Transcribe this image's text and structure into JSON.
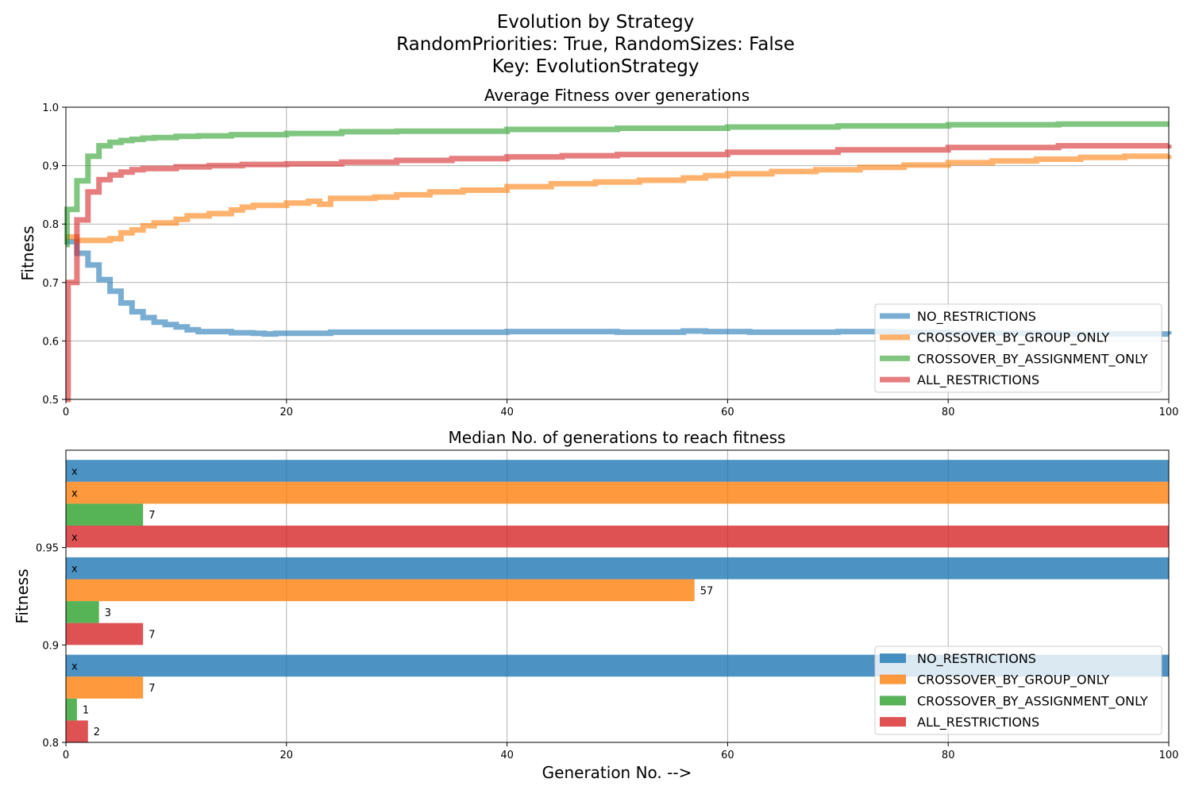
{
  "figure": {
    "suptitle_lines": [
      "Evolution by Strategy",
      "RandomPriorities: True, RandomSizes: False",
      "Key: EvolutionStrategy"
    ],
    "xlabel": "Generation No. -->"
  },
  "colors": {
    "NO_RESTRICTIONS": "#1f77b4",
    "CROSSOVER_BY_GROUP_ONLY": "#ff7f0e",
    "CROSSOVER_BY_ASSIGNMENT_ONLY": "#2ca02c",
    "ALL_RESTRICTIONS": "#d62728"
  },
  "chart_data": [
    {
      "type": "line",
      "title": "Average Fitness over generations",
      "xlabel": "",
      "ylabel": "Fitness",
      "xlim": [
        0,
        100
      ],
      "ylim": [
        0.5,
        1.0
      ],
      "xticks": [
        "0",
        "20",
        "40",
        "60",
        "80",
        "100"
      ],
      "yticks": [
        "0.5",
        "0.6",
        "0.7",
        "0.8",
        "0.9",
        "1.0"
      ],
      "grid": true,
      "legend": "lower-right",
      "step": true,
      "series": [
        {
          "name": "NO_RESTRICTIONS",
          "points": [
            [
              0,
              0.77
            ],
            [
              1,
              0.75
            ],
            [
              2,
              0.73
            ],
            [
              3,
              0.705
            ],
            [
              4,
              0.685
            ],
            [
              5,
              0.665
            ],
            [
              6,
              0.65
            ],
            [
              7,
              0.64
            ],
            [
              8,
              0.632
            ],
            [
              9,
              0.628
            ],
            [
              10,
              0.624
            ],
            [
              11,
              0.619
            ],
            [
              12,
              0.616
            ],
            [
              15,
              0.614
            ],
            [
              17,
              0.613
            ],
            [
              18,
              0.612
            ],
            [
              19,
              0.613
            ],
            [
              24,
              0.615
            ],
            [
              30,
              0.615
            ],
            [
              40,
              0.616
            ],
            [
              50,
              0.615
            ],
            [
              56,
              0.617
            ],
            [
              58,
              0.616
            ],
            [
              62,
              0.615
            ],
            [
              70,
              0.616
            ],
            [
              75,
              0.615
            ],
            [
              80,
              0.613
            ],
            [
              90,
              0.612
            ],
            [
              100,
              0.611
            ]
          ]
        },
        {
          "name": "CROSSOVER_BY_GROUP_ONLY",
          "points": [
            [
              0,
              0.778
            ],
            [
              1,
              0.772
            ],
            [
              4,
              0.775
            ],
            [
              5,
              0.785
            ],
            [
              6,
              0.79
            ],
            [
              7,
              0.797
            ],
            [
              8,
              0.802
            ],
            [
              10,
              0.808
            ],
            [
              11,
              0.814
            ],
            [
              13,
              0.818
            ],
            [
              15,
              0.824
            ],
            [
              16,
              0.829
            ],
            [
              17,
              0.832
            ],
            [
              20,
              0.836
            ],
            [
              22,
              0.839
            ],
            [
              23,
              0.834
            ],
            [
              24,
              0.844
            ],
            [
              28,
              0.846
            ],
            [
              30,
              0.85
            ],
            [
              33,
              0.855
            ],
            [
              36,
              0.858
            ],
            [
              40,
              0.864
            ],
            [
              44,
              0.869
            ],
            [
              48,
              0.872
            ],
            [
              52,
              0.875
            ],
            [
              56,
              0.879
            ],
            [
              58,
              0.883
            ],
            [
              60,
              0.886
            ],
            [
              64,
              0.89
            ],
            [
              68,
              0.893
            ],
            [
              72,
              0.897
            ],
            [
              76,
              0.901
            ],
            [
              80,
              0.905
            ],
            [
              84,
              0.908
            ],
            [
              88,
              0.911
            ],
            [
              92,
              0.914
            ],
            [
              96,
              0.916
            ],
            [
              100,
              0.918
            ]
          ]
        },
        {
          "name": "CROSSOVER_BY_ASSIGNMENT_ONLY",
          "points": [
            [
              0,
              0.765
            ],
            [
              0.1,
              0.825
            ],
            [
              1,
              0.874
            ],
            [
              2,
              0.916
            ],
            [
              3,
              0.934
            ],
            [
              4,
              0.94
            ],
            [
              5,
              0.943
            ],
            [
              6,
              0.945
            ],
            [
              7,
              0.947
            ],
            [
              8,
              0.948
            ],
            [
              10,
              0.95
            ],
            [
              12,
              0.951
            ],
            [
              15,
              0.953
            ],
            [
              20,
              0.955
            ],
            [
              25,
              0.958
            ],
            [
              30,
              0.959
            ],
            [
              40,
              0.962
            ],
            [
              50,
              0.964
            ],
            [
              60,
              0.966
            ],
            [
              70,
              0.968
            ],
            [
              80,
              0.97
            ],
            [
              90,
              0.971
            ],
            [
              100,
              0.971
            ]
          ]
        },
        {
          "name": "ALL_RESTRICTIONS",
          "points": [
            [
              0,
              0.5
            ],
            [
              0.2,
              0.7
            ],
            [
              1,
              0.807
            ],
            [
              2,
              0.855
            ],
            [
              3,
              0.876
            ],
            [
              4,
              0.884
            ],
            [
              5,
              0.889
            ],
            [
              6,
              0.893
            ],
            [
              7,
              0.895
            ],
            [
              10,
              0.898
            ],
            [
              13,
              0.9
            ],
            [
              16,
              0.902
            ],
            [
              20,
              0.903
            ],
            [
              25,
              0.906
            ],
            [
              30,
              0.909
            ],
            [
              35,
              0.912
            ],
            [
              40,
              0.915
            ],
            [
              45,
              0.917
            ],
            [
              50,
              0.919
            ],
            [
              60,
              0.923
            ],
            [
              70,
              0.927
            ],
            [
              80,
              0.931
            ],
            [
              90,
              0.934
            ],
            [
              100,
              0.936
            ]
          ]
        }
      ]
    },
    {
      "type": "bar",
      "orientation": "horizontal",
      "title": "Median No. of generations to reach fitness",
      "xlabel": "Generation No. -->",
      "ylabel": "Fitness",
      "xlim": [
        0,
        100
      ],
      "xticks": [
        "0",
        "20",
        "40",
        "60",
        "80",
        "100"
      ],
      "categories": [
        "0.8",
        "0.9",
        "0.95"
      ],
      "grid": true,
      "legend": "lower-right",
      "not_reached_label": "x",
      "series": [
        {
          "name": "NO_RESTRICTIONS",
          "values": [
            null,
            null,
            null
          ],
          "labels": [
            "x",
            "x",
            "x"
          ]
        },
        {
          "name": "CROSSOVER_BY_GROUP_ONLY",
          "values": [
            7,
            57,
            null
          ],
          "labels": [
            "7",
            "57",
            "x"
          ]
        },
        {
          "name": "CROSSOVER_BY_ASSIGNMENT_ONLY",
          "values": [
            1,
            3,
            7
          ],
          "labels": [
            "1",
            "3",
            "7"
          ]
        },
        {
          "name": "ALL_RESTRICTIONS",
          "values": [
            2,
            7,
            null
          ],
          "labels": [
            "2",
            "7",
            "x"
          ]
        }
      ]
    }
  ]
}
